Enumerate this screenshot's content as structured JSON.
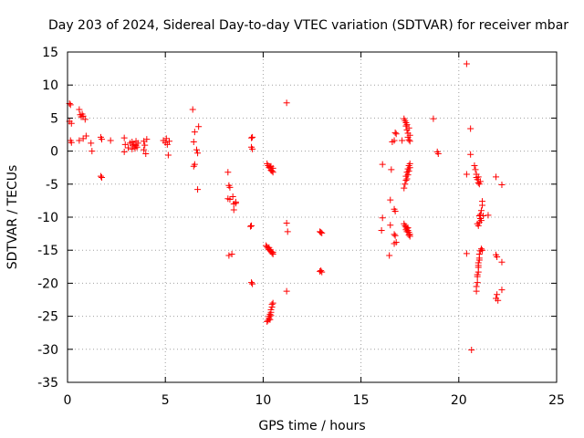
{
  "chart_data": {
    "type": "scatter",
    "title": "Day 203 of 2024, Sidereal Day-to-day VTEC variation (SDTVAR) for receiver mbar",
    "xlabel": "GPS time / hours",
    "ylabel": "SDTVAR / TECUs",
    "xlim": [
      0,
      25
    ],
    "ylim": [
      -35,
      15
    ],
    "xticks": [
      0,
      5,
      10,
      15,
      20,
      25
    ],
    "yticks": [
      -35,
      -30,
      -25,
      -20,
      -15,
      -10,
      -5,
      0,
      5,
      10,
      15
    ],
    "xtick_labels": [
      "0",
      "5",
      "10",
      "15",
      "20",
      "25"
    ],
    "ytick_labels": [
      "-35",
      "-30",
      "-25",
      "-20",
      "-15",
      "-10",
      "-5",
      "0",
      "5",
      "10",
      "15"
    ],
    "grid": true,
    "marker": "+",
    "color": "#ff0000",
    "series": [
      {
        "name": "SDTVAR",
        "points": [
          [
            0.1,
            7.2
          ],
          [
            0.15,
            7.0
          ],
          [
            0.1,
            4.5
          ],
          [
            0.2,
            4.2
          ],
          [
            0.15,
            1.6
          ],
          [
            0.2,
            1.3
          ],
          [
            0.6,
            6.3
          ],
          [
            0.65,
            5.5
          ],
          [
            0.7,
            5.2
          ],
          [
            0.75,
            5.6
          ],
          [
            0.8,
            5.3
          ],
          [
            0.6,
            1.6
          ],
          [
            0.8,
            1.9
          ],
          [
            0.95,
            2.3
          ],
          [
            0.9,
            4.8
          ],
          [
            1.2,
            1.2
          ],
          [
            1.25,
            0.0
          ],
          [
            1.7,
            2.1
          ],
          [
            1.75,
            1.8
          ],
          [
            1.7,
            -3.8
          ],
          [
            1.75,
            -4.0
          ],
          [
            2.2,
            1.6
          ],
          [
            2.9,
            2.0
          ],
          [
            2.95,
            1.0
          ],
          [
            2.9,
            -0.1
          ],
          [
            3.1,
            0.5
          ],
          [
            3.2,
            1.2
          ],
          [
            3.3,
            1.4
          ],
          [
            3.3,
            0.3
          ],
          [
            3.35,
            0.8
          ],
          [
            3.4,
            1.0
          ],
          [
            3.45,
            0.4
          ],
          [
            3.5,
            1.5
          ],
          [
            3.5,
            0.9
          ],
          [
            3.55,
            0.6
          ],
          [
            3.6,
            1.2
          ],
          [
            3.9,
            1.5
          ],
          [
            3.95,
            0.9
          ],
          [
            3.9,
            0.2
          ],
          [
            4.0,
            -0.4
          ],
          [
            4.05,
            1.8
          ],
          [
            4.9,
            1.6
          ],
          [
            5.0,
            1.3
          ],
          [
            5.05,
            1.9
          ],
          [
            5.1,
            1.0
          ],
          [
            5.15,
            -0.6
          ],
          [
            5.2,
            1.5
          ],
          [
            6.4,
            6.3
          ],
          [
            6.45,
            1.4
          ],
          [
            6.5,
            2.9
          ],
          [
            6.5,
            -2.0
          ],
          [
            6.45,
            -2.3
          ],
          [
            6.6,
            0.2
          ],
          [
            6.65,
            -0.3
          ],
          [
            6.7,
            3.7
          ],
          [
            6.65,
            -5.8
          ],
          [
            8.2,
            -3.2
          ],
          [
            8.25,
            -5.2
          ],
          [
            8.3,
            -5.5
          ],
          [
            8.2,
            -7.2
          ],
          [
            8.3,
            -7.3
          ],
          [
            8.45,
            -6.9
          ],
          [
            8.5,
            -8.0
          ],
          [
            8.5,
            -8.9
          ],
          [
            8.6,
            -7.9
          ],
          [
            8.6,
            -7.7
          ],
          [
            8.25,
            -15.8
          ],
          [
            8.4,
            -15.6
          ],
          [
            9.4,
            2.0
          ],
          [
            9.45,
            2.1
          ],
          [
            9.4,
            0.6
          ],
          [
            9.45,
            0.3
          ],
          [
            9.35,
            -11.4
          ],
          [
            9.4,
            -11.3
          ],
          [
            9.4,
            -19.9
          ],
          [
            9.45,
            -20.1
          ],
          [
            10.2,
            -1.9
          ],
          [
            10.25,
            -2.2
          ],
          [
            10.3,
            -2.5
          ],
          [
            10.35,
            -2.4
          ],
          [
            10.4,
            -2.9
          ],
          [
            10.45,
            -3.0
          ],
          [
            10.5,
            -3.2
          ],
          [
            10.5,
            -2.6
          ],
          [
            10.4,
            -2.3
          ],
          [
            10.15,
            -14.3
          ],
          [
            10.2,
            -14.5
          ],
          [
            10.25,
            -14.7
          ],
          [
            10.3,
            -14.9
          ],
          [
            10.35,
            -15.0
          ],
          [
            10.4,
            -15.2
          ],
          [
            10.45,
            -15.4
          ],
          [
            10.5,
            -15.6
          ],
          [
            10.5,
            -15.3
          ],
          [
            10.3,
            -14.6
          ],
          [
            10.2,
            -25.8
          ],
          [
            10.25,
            -25.6
          ],
          [
            10.3,
            -25.3
          ],
          [
            10.3,
            -25.0
          ],
          [
            10.35,
            -24.7
          ],
          [
            10.4,
            -24.4
          ],
          [
            10.4,
            -24.0
          ],
          [
            10.45,
            -23.6
          ],
          [
            10.45,
            -23.2
          ],
          [
            10.5,
            -23.0
          ],
          [
            10.35,
            -25.5
          ],
          [
            10.4,
            -24.9
          ],
          [
            11.2,
            7.3
          ],
          [
            11.2,
            -10.9
          ],
          [
            11.25,
            -12.2
          ],
          [
            11.2,
            -21.2
          ],
          [
            12.9,
            -12.2
          ],
          [
            13.0,
            -12.4
          ],
          [
            12.95,
            -12.3
          ],
          [
            12.9,
            -18.2
          ],
          [
            13.0,
            -18.3
          ],
          [
            12.95,
            -18.1
          ],
          [
            16.1,
            -2.0
          ],
          [
            16.1,
            -10.1
          ],
          [
            16.05,
            -12.0
          ],
          [
            16.5,
            -7.4
          ],
          [
            16.55,
            -2.8
          ],
          [
            16.5,
            -11.2
          ],
          [
            16.45,
            -15.8
          ],
          [
            16.6,
            1.4
          ],
          [
            16.7,
            1.6
          ],
          [
            16.75,
            2.8
          ],
          [
            16.8,
            2.6
          ],
          [
            16.7,
            -8.8
          ],
          [
            16.75,
            -9.1
          ],
          [
            16.7,
            -12.6
          ],
          [
            16.75,
            -12.8
          ],
          [
            16.7,
            -14.0
          ],
          [
            16.8,
            -13.8
          ],
          [
            17.1,
            1.6
          ],
          [
            17.2,
            4.9
          ],
          [
            17.25,
            4.6
          ],
          [
            17.3,
            4.3
          ],
          [
            17.3,
            3.8
          ],
          [
            17.35,
            3.2
          ],
          [
            17.4,
            2.7
          ],
          [
            17.4,
            2.1
          ],
          [
            17.45,
            1.7
          ],
          [
            17.45,
            3.5
          ],
          [
            17.35,
            4.0
          ],
          [
            17.5,
            2.4
          ],
          [
            17.5,
            1.5
          ],
          [
            17.2,
            -5.6
          ],
          [
            17.25,
            -5.0
          ],
          [
            17.3,
            -4.4
          ],
          [
            17.3,
            -3.8
          ],
          [
            17.35,
            -3.2
          ],
          [
            17.4,
            -2.7
          ],
          [
            17.45,
            -2.2
          ],
          [
            17.5,
            -1.9
          ],
          [
            17.35,
            -4.2
          ],
          [
            17.45,
            -3.0
          ],
          [
            17.4,
            -3.6
          ],
          [
            17.5,
            -2.5
          ],
          [
            17.2,
            -11.0
          ],
          [
            17.25,
            -11.3
          ],
          [
            17.3,
            -11.5
          ],
          [
            17.35,
            -11.7
          ],
          [
            17.4,
            -12.0
          ],
          [
            17.45,
            -12.3
          ],
          [
            17.5,
            -12.6
          ],
          [
            17.5,
            -12.9
          ],
          [
            17.4,
            -11.6
          ],
          [
            17.3,
            -11.9
          ],
          [
            17.45,
            -12.7
          ],
          [
            17.35,
            -12.2
          ],
          [
            18.7,
            4.9
          ],
          [
            18.9,
            -0.1
          ],
          [
            18.95,
            -0.4
          ],
          [
            20.4,
            13.2
          ],
          [
            20.4,
            -3.5
          ],
          [
            20.4,
            -15.5
          ],
          [
            20.6,
            3.4
          ],
          [
            20.6,
            -0.5
          ],
          [
            20.65,
            -30.1
          ],
          [
            20.8,
            -2.2
          ],
          [
            20.85,
            -2.8
          ],
          [
            20.9,
            -3.5
          ],
          [
            20.9,
            -4.0
          ],
          [
            20.95,
            -4.3
          ],
          [
            21.0,
            -4.8
          ],
          [
            21.05,
            -5.0
          ],
          [
            21.1,
            -4.6
          ],
          [
            21.0,
            -3.9
          ],
          [
            21.0,
            -11.3
          ],
          [
            21.05,
            -10.8
          ],
          [
            21.1,
            -10.2
          ],
          [
            21.1,
            -9.6
          ],
          [
            21.15,
            -9.0
          ],
          [
            21.2,
            -8.2
          ],
          [
            21.2,
            -7.6
          ],
          [
            21.15,
            -10.5
          ],
          [
            21.05,
            -9.8
          ],
          [
            20.95,
            -11.0
          ],
          [
            21.25,
            -9.8
          ],
          [
            21.5,
            -9.7
          ],
          [
            20.9,
            -21.2
          ],
          [
            20.9,
            -20.5
          ],
          [
            20.95,
            -19.9
          ],
          [
            20.95,
            -19.0
          ],
          [
            21.0,
            -18.3
          ],
          [
            21.0,
            -17.6
          ],
          [
            21.0,
            -16.9
          ],
          [
            21.05,
            -16.2
          ],
          [
            21.05,
            -15.6
          ],
          [
            21.1,
            -15.1
          ],
          [
            21.15,
            -14.8
          ],
          [
            21.2,
            -15.0
          ],
          [
            20.95,
            -18.7
          ],
          [
            21.0,
            -17.3
          ],
          [
            21.05,
            -16.5
          ],
          [
            21.9,
            -3.9
          ],
          [
            22.2,
            -5.1
          ],
          [
            21.9,
            -15.7
          ],
          [
            21.95,
            -16.0
          ],
          [
            22.2,
            -16.8
          ],
          [
            21.95,
            -21.7
          ],
          [
            21.9,
            -22.3
          ],
          [
            22.0,
            -22.6
          ],
          [
            22.2,
            -21.0
          ]
        ]
      }
    ]
  }
}
